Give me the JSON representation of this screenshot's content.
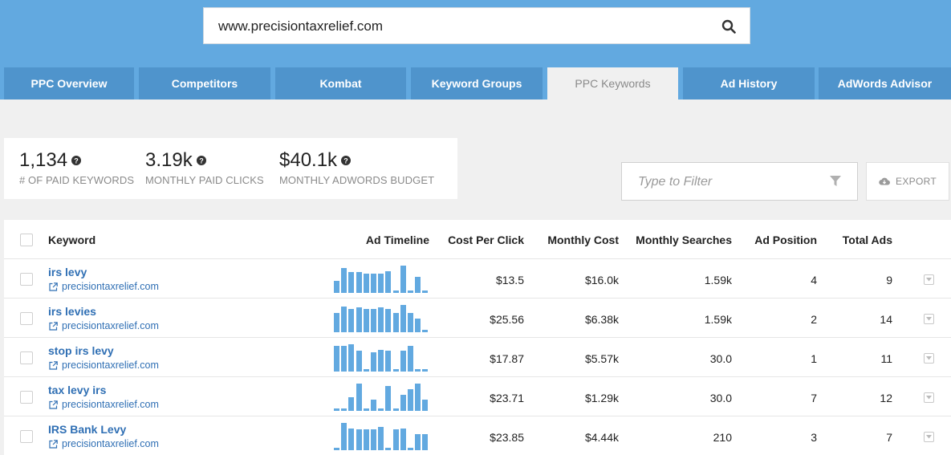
{
  "search": {
    "value": "www.precisiontaxrelief.com",
    "icon": "search-icon"
  },
  "tabs": [
    {
      "label": "PPC Overview",
      "active": false
    },
    {
      "label": "Competitors",
      "active": false
    },
    {
      "label": "Kombat",
      "active": false
    },
    {
      "label": "Keyword Groups",
      "active": false
    },
    {
      "label": "PPC Keywords",
      "active": true
    },
    {
      "label": "Ad History",
      "active": false
    },
    {
      "label": "AdWords Advisor",
      "active": false
    }
  ],
  "stats": [
    {
      "value": "1,134",
      "label": "# OF PAID KEYWORDS"
    },
    {
      "value": "3.19k",
      "label": "MONTHLY PAID CLICKS"
    },
    {
      "value": "$40.1k",
      "label": "MONTHLY ADWORDS BUDGET"
    }
  ],
  "filter": {
    "placeholder": "Type to Filter"
  },
  "export": {
    "label": "EXPORT"
  },
  "table": {
    "headers": {
      "keyword": "Keyword",
      "timeline": "Ad Timeline",
      "cpc": "Cost Per Click",
      "monthly_cost": "Monthly Cost",
      "monthly_searches": "Monthly Searches",
      "ad_position": "Ad Position",
      "total_ads": "Total Ads"
    },
    "rows": [
      {
        "keyword": "irs levy",
        "domain": "precisiontaxrelief.com",
        "cpc": "$13.5",
        "monthly_cost": "$16.0k",
        "monthly_searches": "1.59k",
        "ad_position": "4",
        "total_ads": "9",
        "timeline": [
          0.45,
          0.9,
          0.75,
          0.75,
          0.7,
          0.7,
          0.7,
          0.8,
          0.08,
          1.0,
          0.1,
          0.6,
          0.08
        ]
      },
      {
        "keyword": "irs levies",
        "domain": "precisiontaxrelief.com",
        "cpc": "$25.56",
        "monthly_cost": "$6.38k",
        "monthly_searches": "1.59k",
        "ad_position": "2",
        "total_ads": "14",
        "timeline": [
          0.7,
          0.95,
          0.85,
          0.9,
          0.85,
          0.85,
          0.9,
          0.85,
          0.7,
          1.0,
          0.7,
          0.5,
          0.08
        ]
      },
      {
        "keyword": "stop irs levy",
        "domain": "precisiontaxrelief.com",
        "cpc": "$17.87",
        "monthly_cost": "$5.57k",
        "monthly_searches": "30.0",
        "ad_position": "1",
        "total_ads": "11",
        "timeline": [
          0.95,
          0.95,
          1.0,
          0.75,
          0.1,
          0.7,
          0.8,
          0.75,
          0.1,
          0.75,
          0.95,
          0.08,
          0.08
        ]
      },
      {
        "keyword": "tax levy irs",
        "domain": "precisiontaxrelief.com",
        "cpc": "$23.71",
        "monthly_cost": "$1.29k",
        "monthly_searches": "30.0",
        "ad_position": "7",
        "total_ads": "12",
        "timeline": [
          0.1,
          0.1,
          0.5,
          1.0,
          0.1,
          0.4,
          0.1,
          0.9,
          0.1,
          0.6,
          0.8,
          1.0,
          0.4
        ]
      },
      {
        "keyword": "IRS Bank Levy",
        "domain": "precisiontaxrelief.com",
        "cpc": "$23.85",
        "monthly_cost": "$4.44k",
        "monthly_searches": "210",
        "ad_position": "3",
        "total_ads": "7",
        "timeline": [
          0.1,
          1.0,
          0.8,
          0.75,
          0.75,
          0.75,
          0.85,
          0.1,
          0.75,
          0.8,
          0.1,
          0.6,
          0.6
        ]
      }
    ]
  },
  "colors": {
    "brand": "#62a9e0",
    "tab": "#4f94cc",
    "link": "#2f6fb4"
  }
}
